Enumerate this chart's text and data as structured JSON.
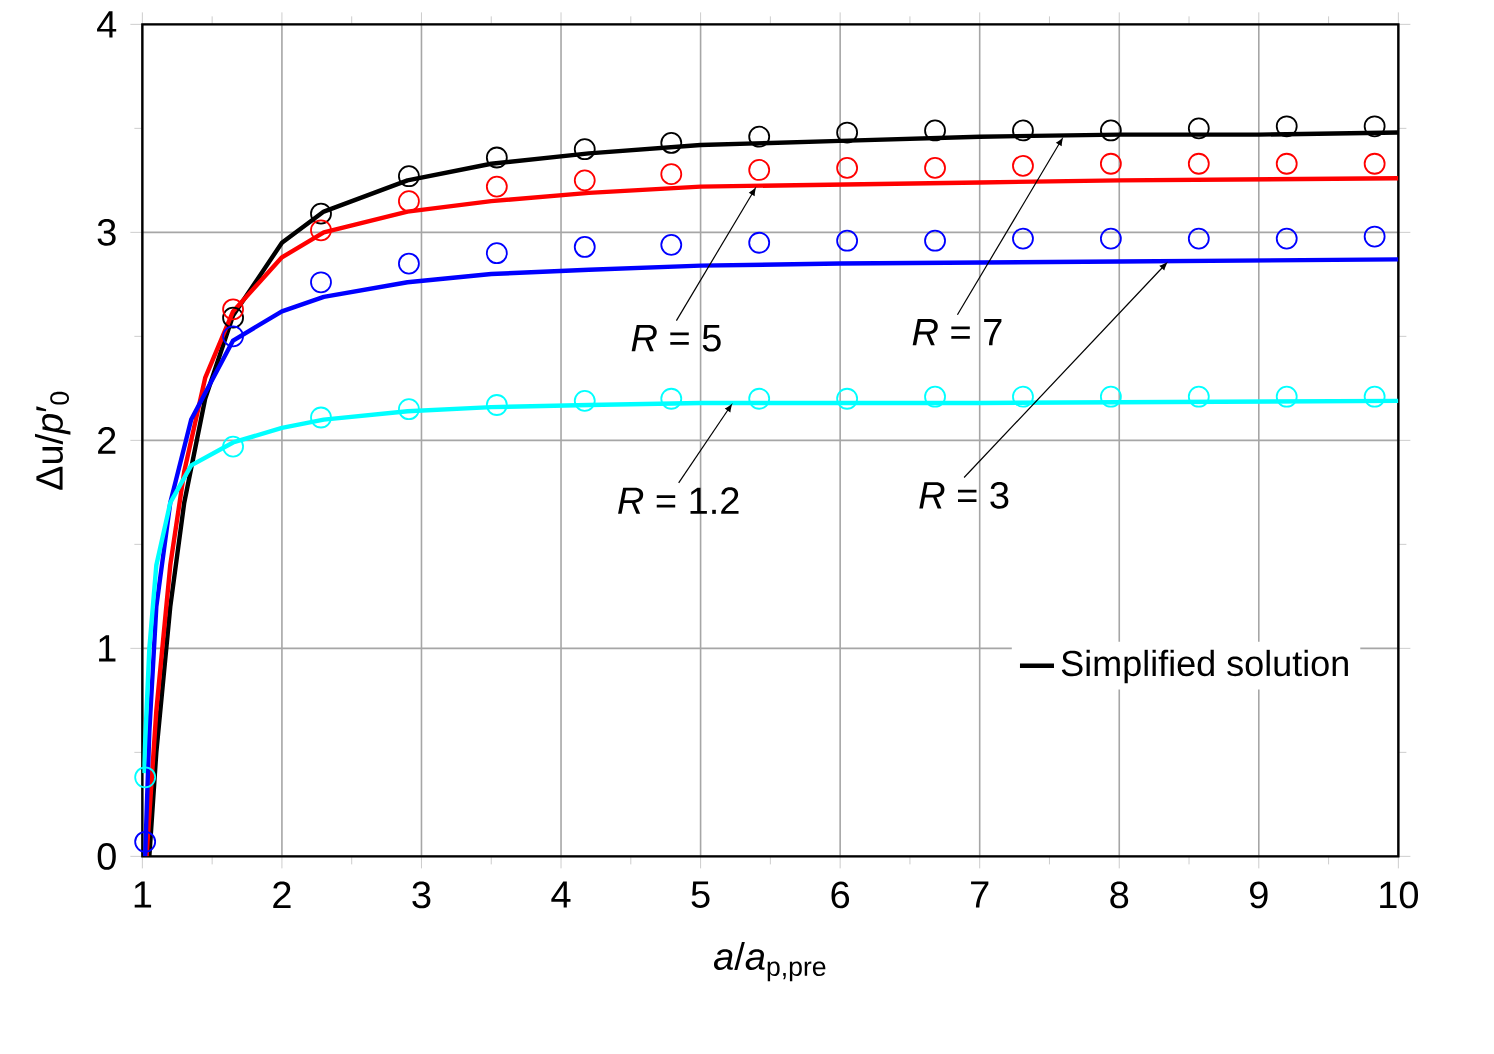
{
  "chart_data": {
    "type": "line",
    "xlabel": "*a*/*a*$_{p,pre}$",
    "ylabel": "Δu/*p*′$_{0}$",
    "xlim": [
      1,
      10
    ],
    "ylim": [
      0,
      4
    ],
    "xticks": [
      1,
      2,
      3,
      4,
      5,
      6,
      7,
      8,
      9,
      10
    ],
    "yticks": [
      0,
      1,
      2,
      3,
      4
    ],
    "grid": true,
    "legend": "bottom right",
    "series": [
      {
        "name": "Simplified solution",
        "color": "#000000",
        "marker": "none",
        "x": [
          1.05,
          1.1,
          1.2,
          1.3,
          1.45,
          1.65,
          2,
          2.3,
          2.9,
          3.5,
          4.2,
          5,
          6,
          7,
          8,
          9,
          10
        ],
        "values": [
          0,
          0.5,
          1.2,
          1.7,
          2.2,
          2.6,
          2.95,
          3.1,
          3.25,
          3.33,
          3.38,
          3.42,
          3.44,
          3.46,
          3.47,
          3.47,
          3.48
        ]
      },
      {
        "color": "#ff0000",
        "marker": "none",
        "x": [
          1.03,
          1.1,
          1.2,
          1.3,
          1.45,
          1.65,
          2,
          2.3,
          2.9,
          3.5,
          4.2,
          5,
          6,
          7,
          8,
          10
        ],
        "values": [
          0,
          0.7,
          1.4,
          1.85,
          2.3,
          2.62,
          2.88,
          3.0,
          3.1,
          3.15,
          3.19,
          3.22,
          3.23,
          3.24,
          3.25,
          3.26
        ]
      },
      {
        "color": "#0000ff",
        "marker": "none",
        "x": [
          1.02,
          1.05,
          1.1,
          1.2,
          1.35,
          1.65,
          2,
          2.3,
          2.9,
          3.5,
          4.2,
          5,
          6,
          8,
          10
        ],
        "values": [
          0,
          0.6,
          1.2,
          1.7,
          2.1,
          2.48,
          2.62,
          2.69,
          2.76,
          2.8,
          2.82,
          2.84,
          2.85,
          2.86,
          2.87
        ]
      },
      {
        "color": "#00ffff",
        "marker": "none",
        "x": [
          1.01,
          1.05,
          1.1,
          1.2,
          1.35,
          1.65,
          2,
          2.3,
          2.9,
          3.5,
          4.2,
          5,
          7,
          10
        ],
        "values": [
          0.4,
          1.0,
          1.4,
          1.7,
          1.88,
          1.99,
          2.06,
          2.1,
          2.14,
          2.16,
          2.17,
          2.18,
          2.18,
          2.19
        ]
      },
      {
        "type": "scatter",
        "color": "#000000",
        "marker": "circle",
        "x": [
          1.65,
          2.28,
          2.91,
          3.54,
          4.17,
          4.79,
          5.42,
          6.05,
          6.68,
          7.31,
          7.94,
          8.57,
          9.2,
          9.83
        ],
        "values": [
          2.59,
          3.09,
          3.27,
          3.36,
          3.4,
          3.43,
          3.46,
          3.48,
          3.49,
          3.49,
          3.49,
          3.5,
          3.51,
          3.51
        ]
      },
      {
        "type": "scatter",
        "color": "#ff0000",
        "marker": "circle",
        "x": [
          1.65,
          2.28,
          2.91,
          3.54,
          4.17,
          4.79,
          5.42,
          6.05,
          6.68,
          7.31,
          7.94,
          8.57,
          9.2,
          9.83
        ],
        "values": [
          2.63,
          3.01,
          3.15,
          3.22,
          3.25,
          3.28,
          3.3,
          3.31,
          3.31,
          3.32,
          3.33,
          3.33,
          3.33,
          3.33
        ]
      },
      {
        "type": "scatter",
        "color": "#0000ff",
        "marker": "circle",
        "x": [
          1.02,
          1.65,
          2.28,
          2.91,
          3.54,
          4.17,
          4.79,
          5.42,
          6.05,
          6.68,
          7.31,
          7.94,
          8.57,
          9.2,
          9.83
        ],
        "values": [
          0.07,
          2.5,
          2.76,
          2.85,
          2.9,
          2.93,
          2.94,
          2.95,
          2.96,
          2.96,
          2.97,
          2.97,
          2.97,
          2.97,
          2.98
        ]
      },
      {
        "type": "scatter",
        "color": "#00ffff",
        "marker": "circle",
        "x": [
          1.02,
          1.65,
          2.28,
          2.91,
          3.54,
          4.17,
          4.79,
          5.42,
          6.05,
          6.68,
          7.31,
          7.94,
          8.57,
          9.2,
          9.83
        ],
        "values": [
          0.38,
          1.97,
          2.11,
          2.15,
          2.17,
          2.19,
          2.2,
          2.2,
          2.2,
          2.21,
          2.21,
          2.21,
          2.21,
          2.21,
          2.21
        ]
      }
    ],
    "annotations": [
      {
        "text": "*R* = 5",
        "x": 5.4,
        "y": 3.22
      },
      {
        "text": "*R* = 7",
        "x": 7.6,
        "y": 3.46
      },
      {
        "text": "*R* = 1.2",
        "x": 5.23,
        "y": 2.18
      },
      {
        "text": "*R* = 3",
        "x": 8.35,
        "y": 2.86
      }
    ]
  }
}
